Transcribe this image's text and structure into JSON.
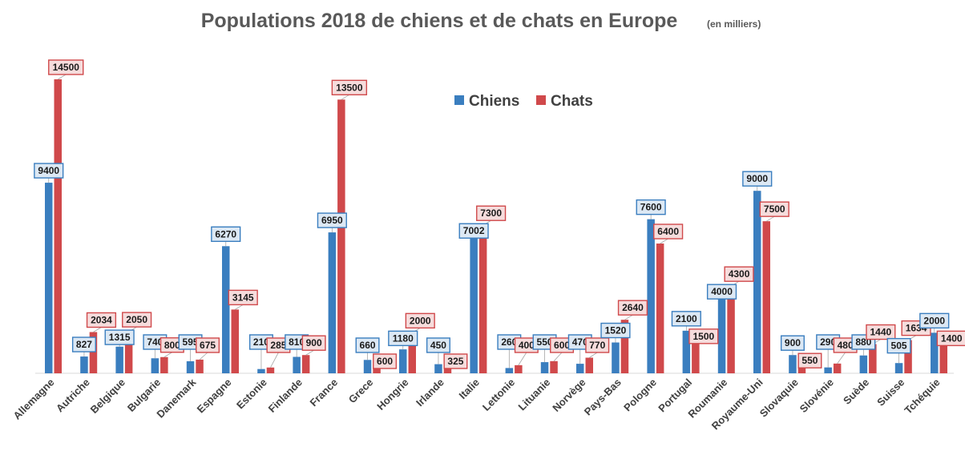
{
  "chart_data": {
    "type": "bar",
    "title": "Populations 2018 de chiens et de chats en Europe",
    "subtitle": "(en milliers)",
    "categories": [
      "Allemagne",
      "Autriche",
      "Belgique",
      "Bulgarie",
      "Danemark",
      "Espagne",
      "Estonie",
      "Finlande",
      "France",
      "Grece",
      "Hongrie",
      "Irlande",
      "Italie",
      "Lettonie",
      "Lituanie",
      "Norvège",
      "Pays-Bas",
      "Pologne",
      "Portugal",
      "Roumanie",
      "Royaume-Uni",
      "Slovaquie",
      "Slovénie",
      "Suède",
      "Suisse",
      "Tchéquie"
    ],
    "series": [
      {
        "name": "Chiens",
        "color": "#3a7ebf",
        "values": [
          9400,
          827,
          1315,
          740,
          595,
          6270,
          210,
          810,
          6950,
          660,
          1180,
          450,
          7002,
          260,
          550,
          470,
          1520,
          7600,
          2100,
          4000,
          9000,
          900,
          290,
          880,
          505,
          2000
        ]
      },
      {
        "name": "Chats",
        "color": "#d0494b",
        "values": [
          14500,
          2034,
          2050,
          800,
          675,
          3145,
          285,
          900,
          13500,
          600,
          2000,
          325,
          7300,
          400,
          600,
          770,
          2640,
          6400,
          1500,
          4300,
          7500,
          550,
          480,
          1440,
          1634,
          1400
        ]
      }
    ],
    "ylim": [
      0,
      15000
    ],
    "grid": false,
    "legend": "top-center",
    "xlabel": "",
    "ylabel": ""
  }
}
